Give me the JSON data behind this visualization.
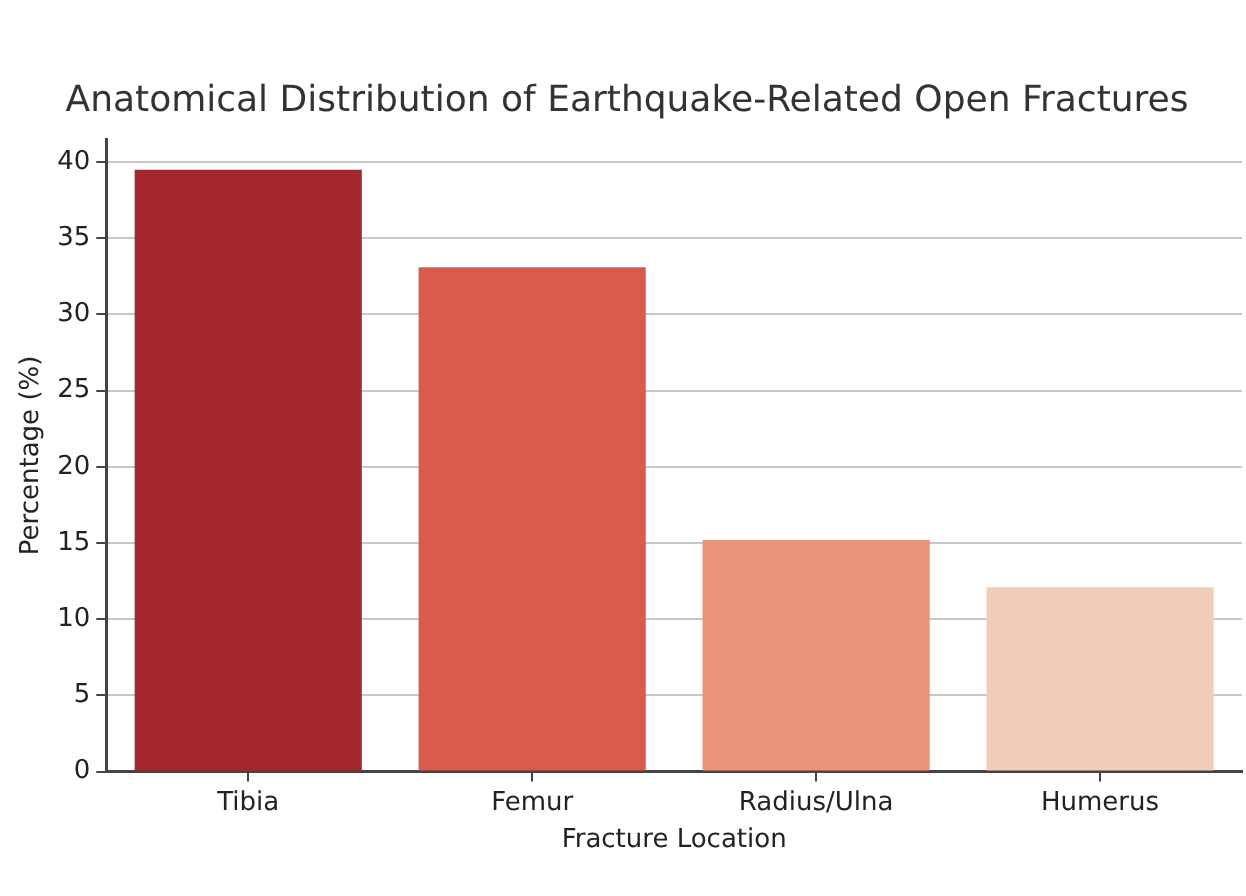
{
  "chart_data": {
    "type": "bar",
    "title": "Anatomical Distribution of Earthquake-Related Open Fractures",
    "xlabel": "Fracture Location",
    "ylabel": "Percentage (%)",
    "categories": [
      "Tibia",
      "Femur",
      "Radius/Ulna",
      "Humerus"
    ],
    "values": [
      39.5,
      33.1,
      15.2,
      12.1
    ],
    "colors": [
      "#a5272e",
      "#da5a4b",
      "#e9937a",
      "#f2cdb9"
    ],
    "ylim": [
      0,
      41.5
    ],
    "yticks": [
      0,
      5,
      10,
      15,
      20,
      25,
      30,
      35,
      40
    ],
    "grid": "y",
    "legend": false
  }
}
